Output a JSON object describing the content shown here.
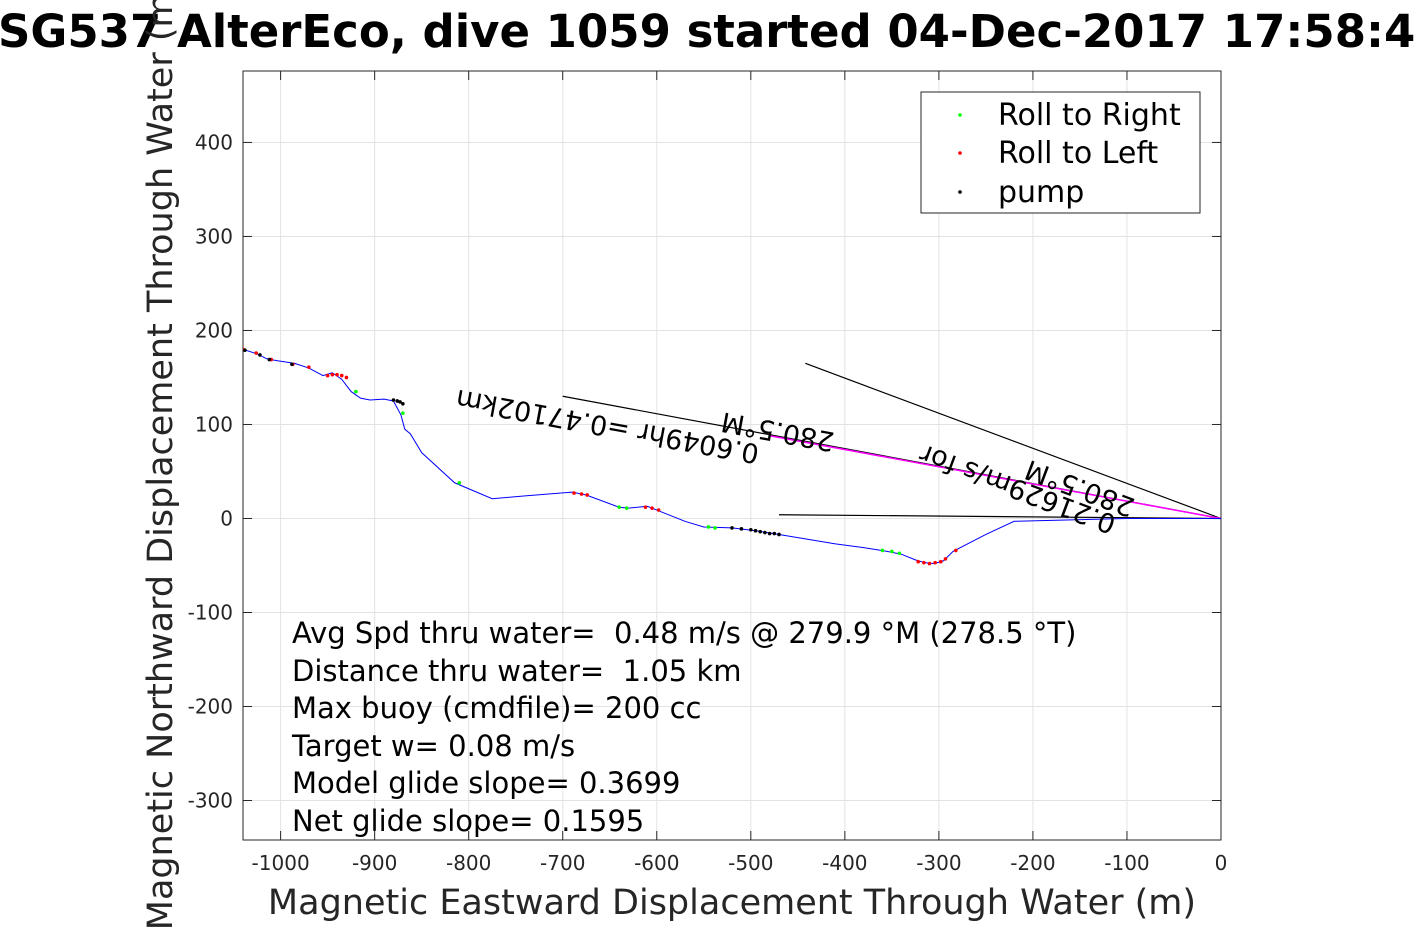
{
  "chart_data": {
    "type": "line",
    "title": "SG537 AlterEco, dive 1059 started 04-Dec-2017 17:58:4",
    "xlabel": "Magnetic Eastward Displacement Through Water (m)",
    "ylabel": "Magnetic Northward Displacement Through Water (m)",
    "xlim": [
      -1040,
      0
    ],
    "ylim": [
      -342,
      476
    ],
    "xticks": [
      -1000,
      -900,
      -800,
      -700,
      -600,
      -500,
      -400,
      -300,
      -200,
      -100,
      0
    ],
    "yticks": [
      -300,
      -200,
      -100,
      0,
      100,
      200,
      300,
      400
    ],
    "xtick_labels": [
      "-1000",
      "-900",
      "-800",
      "-700",
      "-600",
      "-500",
      "-400",
      "-300",
      "-200",
      "-100",
      "0"
    ],
    "ytick_labels": [
      "-300",
      "-200",
      "-100",
      "0",
      "100",
      "200",
      "300",
      "400"
    ],
    "grid": true,
    "legend_position": "top-right",
    "legend": [
      {
        "label": "Roll to Right",
        "color": "#00ff00"
      },
      {
        "label": "Roll to Left",
        "color": "#ff0000"
      },
      {
        "label": "pump",
        "color": "#000000"
      }
    ],
    "track": {
      "name": "track",
      "color": "#0000ff",
      "x": [
        -1040,
        -1025,
        -1015,
        -1005,
        -985,
        -970,
        -955,
        -945,
        -935,
        -925,
        -915,
        -905,
        -890,
        -880,
        -872,
        -868,
        -862,
        -850,
        -815,
        -775,
        -740,
        -690,
        -675,
        -640,
        -630,
        -610,
        -595,
        -570,
        -550,
        -520,
        -495,
        -470,
        -410,
        -380,
        -355,
        -340,
        -325,
        -315,
        -305,
        -295,
        -285,
        -250,
        -220,
        -100,
        -40,
        0
      ],
      "y": [
        180,
        175,
        170,
        168,
        165,
        160,
        152,
        155,
        148,
        135,
        128,
        126,
        127,
        125,
        110,
        95,
        90,
        70,
        38,
        21,
        24,
        28,
        25,
        12,
        11,
        13,
        7,
        -3,
        -9,
        -10,
        -13,
        -17,
        -27,
        -31,
        -35,
        -38,
        -44,
        -47,
        -48,
        -45,
        -35,
        -17,
        -3,
        0,
        0,
        0
      ]
    },
    "roll_right_points": {
      "x": [
        -920,
        -870,
        -810,
        -640,
        -632,
        -545,
        -538,
        -360,
        -350,
        -342
      ],
      "y": [
        135,
        112,
        38,
        12,
        11,
        -9,
        -10,
        -34,
        -35,
        -37
      ]
    },
    "roll_left_points": {
      "x": [
        -1040,
        -1026,
        -1010,
        -987,
        -970,
        -950,
        -945,
        -940,
        -935,
        -930,
        -688,
        -680,
        -674,
        -612,
        -605,
        -598,
        -322,
        -316,
        -310,
        -304,
        -298,
        -293,
        -282
      ],
      "y": [
        180,
        176,
        169,
        164,
        161,
        152,
        153,
        153,
        152,
        150,
        27,
        26,
        25,
        12,
        11,
        9,
        -46,
        -47,
        -48,
        -47,
        -46,
        -43,
        -34
      ]
    },
    "pump_points": {
      "x": [
        -1038,
        -1022,
        -1012,
        -988,
        -880,
        -876,
        -873,
        -870,
        -520,
        -510,
        -500,
        -495,
        -490,
        -485,
        -480,
        -475,
        -470
      ],
      "y": [
        179,
        174,
        169,
        164,
        126,
        125,
        124,
        122,
        -10,
        -11,
        -12,
        -13,
        -14,
        -15,
        -16,
        -16,
        -17
      ]
    },
    "reference_lines": [
      {
        "x": [
          -442,
          0
        ],
        "y": [
          165,
          0
        ],
        "color": "#000000"
      },
      {
        "x": [
          -470,
          0
        ],
        "y": [
          4,
          0
        ],
        "color": "#000000"
      },
      {
        "x": [
          -700,
          0
        ],
        "y": [
          130,
          0
        ],
        "color": "#000000"
      }
    ],
    "magenta_line": {
      "x": [
        -480,
        0
      ],
      "y": [
        88,
        0
      ],
      "color": "#ff00ff"
    },
    "annotations": [
      {
        "text": "280.5°M",
        "x": -410,
        "y": 91,
        "rotation": 190.4
      },
      {
        "text": "0.6049hr =0.47102km",
        "x": -490,
        "y": 78,
        "rotation": 190.4
      },
      {
        "text": "280.5°M",
        "x": -90,
        "y": 20,
        "rotation": 200.5
      },
      {
        "text": "0.21629m/s for",
        "x": -110,
        "y": 2,
        "rotation": 200.5
      }
    ]
  },
  "info_box": [
    "Avg Spd thru water=  0.48 m/s @ 279.9 °M (278.5 °T)",
    "Distance thru water=  1.05 km",
    "Max buoy (cmdfile)= 200 cc",
    "Target w= 0.08 m/s",
    "Model glide slope= 0.3699",
    "Net glide slope= 0.1595"
  ]
}
